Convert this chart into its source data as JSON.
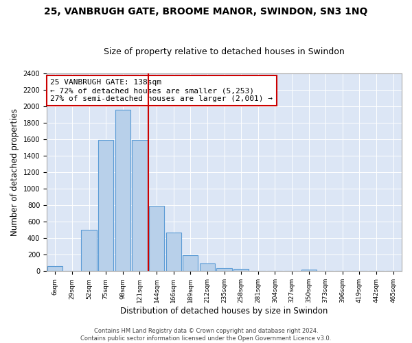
{
  "title1": "25, VANBRUGH GATE, BROOME MANOR, SWINDON, SN3 1NQ",
  "title2": "Size of property relative to detached houses in Swindon",
  "xlabel": "Distribution of detached houses by size in Swindon",
  "ylabel": "Number of detached properties",
  "footer1": "Contains HM Land Registry data © Crown copyright and database right 2024.",
  "footer2": "Contains public sector information licensed under the Open Government Licence v3.0.",
  "annotation_line1": "25 VANBRUGH GATE: 138sqm",
  "annotation_line2": "← 72% of detached houses are smaller (5,253)",
  "annotation_line3": "27% of semi-detached houses are larger (2,001) →",
  "bar_labels": [
    "6sqm",
    "29sqm",
    "52sqm",
    "75sqm",
    "98sqm",
    "121sqm",
    "144sqm",
    "166sqm",
    "189sqm",
    "212sqm",
    "235sqm",
    "258sqm",
    "281sqm",
    "304sqm",
    "327sqm",
    "350sqm",
    "373sqm",
    "396sqm",
    "419sqm",
    "442sqm",
    "465sqm"
  ],
  "bar_values": [
    60,
    0,
    500,
    1590,
    1960,
    1590,
    790,
    470,
    195,
    95,
    35,
    28,
    0,
    0,
    0,
    20,
    0,
    0,
    0,
    0,
    0
  ],
  "bar_color": "#b8d0ea",
  "bar_edge_color": "#5b9bd5",
  "red_line_after_index": 5,
  "highlight_color": "#cc0000",
  "ylim": [
    0,
    2400
  ],
  "yticks": [
    0,
    200,
    400,
    600,
    800,
    1000,
    1200,
    1400,
    1600,
    1800,
    2000,
    2200,
    2400
  ],
  "plot_bg_color": "#dce6f5",
  "title1_fontsize": 10,
  "title2_fontsize": 9,
  "xlabel_fontsize": 8.5,
  "ylabel_fontsize": 8.5,
  "annotation_fontsize": 8
}
